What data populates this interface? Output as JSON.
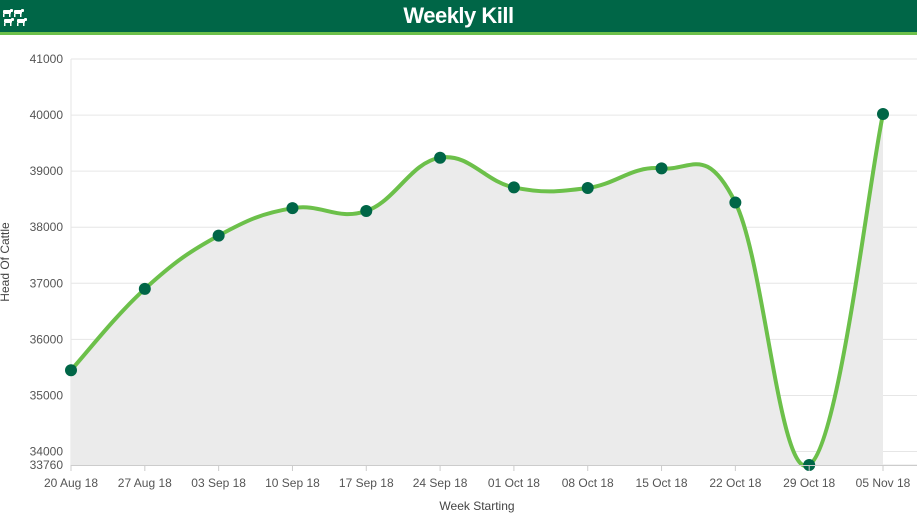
{
  "header": {
    "title": "Weekly Kill",
    "logo_icon": "cattle-herd-icon",
    "background_color": "#006647",
    "accent_color": "#6cc04a"
  },
  "chart_data": {
    "type": "area",
    "title": "Weekly Kill",
    "xlabel": "Week Starting",
    "ylabel": "Head Of Cattle",
    "categories": [
      "20 Aug 18",
      "27 Aug 18",
      "03 Sep 18",
      "10 Sep 18",
      "17 Sep 18",
      "24 Sep 18",
      "01 Oct 18",
      "08 Oct 18",
      "15 Oct 18",
      "22 Oct 18",
      "29 Oct 18",
      "05 Nov 18"
    ],
    "series": [
      {
        "values": [
          35450,
          36900,
          37850,
          38340,
          38290,
          39240,
          38710,
          38700,
          39050,
          38440,
          33760,
          40020
        ],
        "line_color": "#6cc04a",
        "marker_color": "#006647",
        "fill_color": "#ebebeb"
      }
    ],
    "yticks": [
      33760,
      34000,
      35000,
      36000,
      37000,
      38000,
      39000,
      40000,
      41000
    ],
    "ylim": [
      33760,
      41000
    ],
    "grid": true,
    "smooth": true
  }
}
